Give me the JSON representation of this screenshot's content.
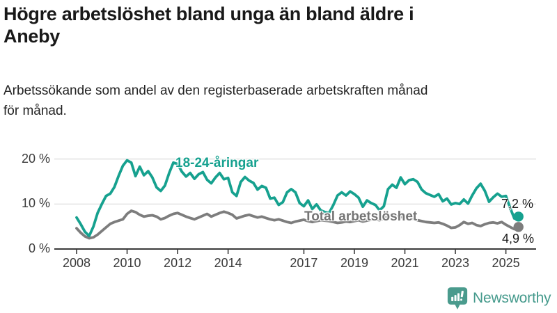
{
  "header": {
    "title_lines": [
      "Högre arbetslöshet bland unga än bland äldre i",
      "Aneby"
    ],
    "subtitle_lines": [
      "Arbetssökande som andel av den registerbaserade arbetskraften månad",
      "för månad."
    ]
  },
  "chart_data": {
    "type": "line",
    "title": "Högre arbetslöshet bland unga än bland äldre i Aneby",
    "subtitle": "Arbetssökande som andel av den registerbaserade arbetskraften månad för månad.",
    "xlabel": "",
    "ylabel": "",
    "x_unit": "year",
    "x_start": 2008.0,
    "x_step": 0.16667,
    "x_ticks": [
      2008,
      2010,
      2012,
      2014,
      2017,
      2019,
      2021,
      2023,
      2025
    ],
    "y_ticks": [
      {
        "value": 0,
        "label": "0 %"
      },
      {
        "value": 10,
        "label": "10 %"
      },
      {
        "value": 20,
        "label": "20 %"
      }
    ],
    "ylim": [
      0,
      22
    ],
    "grid": "horizontal",
    "legend_position": "inline-labels",
    "series": [
      {
        "name": "18-24-åringar",
        "color": "#16a18f",
        "end_label": "7,2 %",
        "end_value": 7.2,
        "values": [
          7.0,
          5.5,
          3.8,
          2.9,
          5.0,
          8.0,
          10.0,
          11.8,
          12.3,
          13.8,
          16.3,
          18.5,
          19.7,
          19.2,
          16.2,
          18.3,
          16.4,
          17.3,
          15.9,
          13.7,
          12.9,
          14.1,
          16.9,
          19.2,
          18.9,
          17.2,
          16.1,
          16.9,
          15.6,
          16.6,
          17.1,
          15.4,
          14.6,
          15.9,
          16.9,
          15.5,
          15.8,
          12.6,
          11.8,
          14.9,
          16.0,
          15.2,
          14.7,
          13.2,
          14.0,
          13.6,
          11.2,
          11.4,
          9.8,
          10.4,
          12.6,
          13.3,
          12.6,
          10.2,
          9.5,
          10.8,
          8.9,
          9.9,
          8.6,
          8.2,
          8.0,
          9.8,
          11.9,
          12.6,
          11.9,
          12.8,
          12.2,
          11.4,
          9.4,
          10.8,
          10.2,
          9.8,
          8.6,
          9.5,
          13.3,
          14.3,
          13.6,
          15.9,
          14.4,
          15.3,
          15.5,
          14.9,
          13.2,
          12.4,
          12.0,
          11.6,
          12.2,
          10.6,
          11.2,
          9.9,
          10.2,
          10.0,
          11.0,
          10.1,
          11.9,
          13.5,
          14.5,
          12.9,
          10.5,
          11.5,
          12.3,
          11.6,
          11.8,
          9.2,
          6.8,
          7.2
        ]
      },
      {
        "name": "Total arbetslöshet",
        "color": "#7d7d7d",
        "end_label": "4,9 %",
        "end_value": 4.9,
        "values": [
          4.6,
          3.6,
          2.8,
          2.4,
          2.6,
          3.2,
          4.0,
          4.8,
          5.6,
          6.0,
          6.3,
          6.6,
          7.8,
          8.5,
          8.2,
          7.6,
          7.2,
          7.4,
          7.5,
          7.2,
          6.6,
          6.9,
          7.4,
          7.8,
          8.0,
          7.6,
          7.2,
          6.9,
          6.6,
          7.0,
          7.4,
          7.8,
          7.2,
          7.6,
          8.0,
          8.3,
          8.0,
          7.6,
          6.8,
          7.1,
          7.4,
          7.6,
          7.3,
          7.0,
          7.2,
          6.9,
          6.6,
          6.4,
          6.6,
          6.3,
          6.0,
          5.8,
          6.1,
          6.3,
          6.5,
          6.2,
          6.0,
          6.2,
          6.4,
          6.3,
          6.2,
          6.0,
          5.8,
          5.9,
          6.1,
          6.0,
          6.2,
          6.4,
          6.1,
          6.3,
          6.5,
          6.6,
          6.4,
          6.8,
          7.4,
          7.6,
          7.3,
          7.1,
          7.2,
          7.0,
          6.7,
          6.4,
          6.2,
          6.0,
          5.9,
          5.8,
          5.9,
          5.6,
          5.2,
          4.7,
          4.8,
          5.3,
          6.0,
          5.6,
          5.8,
          5.3,
          5.1,
          5.5,
          5.8,
          5.9,
          5.7,
          6.0,
          5.4,
          4.9,
          4.4,
          4.9
        ]
      }
    ],
    "style": {
      "grid_color": "#d9d9d9",
      "axis_color": "#3b3b3b",
      "tick_label_color": "#3b3b3b"
    }
  },
  "footer": {
    "brand": "Newsworthy",
    "brand_color": "#459a8c",
    "icon": "bar-chart-speech-bubble"
  }
}
